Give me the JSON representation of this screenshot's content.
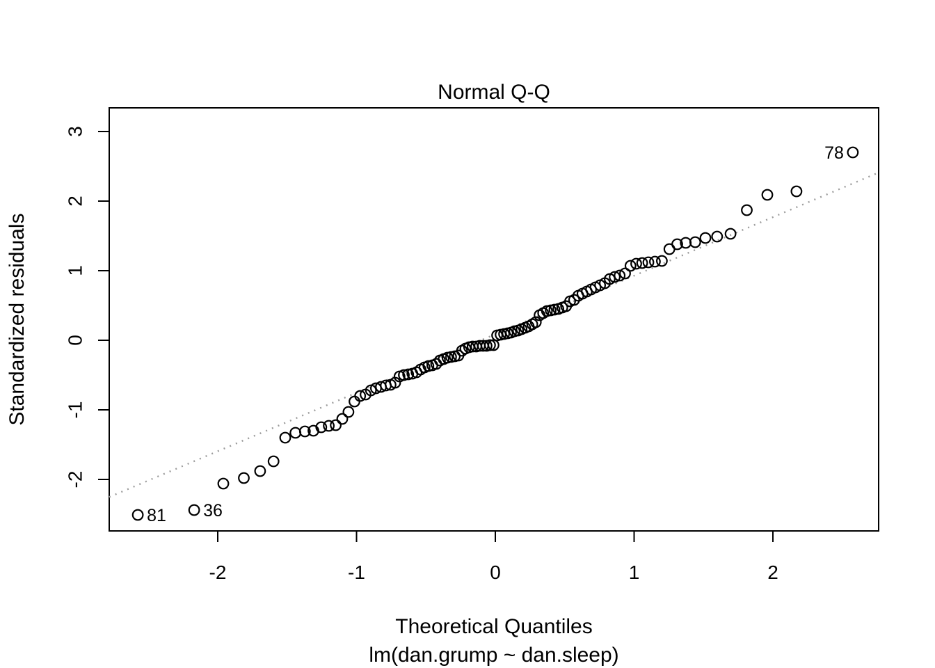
{
  "chart_data": {
    "type": "scatter",
    "title": "Normal Q-Q",
    "xlabel": "Theoretical Quantiles",
    "sublabel": "lm(dan.grump ~ dan.sleep)",
    "ylabel": "Standardized residuals",
    "background_color": "#ffffff",
    "point_color": "#000000",
    "point_shape": "open-circle",
    "reference_line": {
      "style": "dotted",
      "color": "#9b9b9b",
      "slope": 0.841,
      "intercept": 0.087
    },
    "grid": false,
    "legend": null,
    "x_ticks": [
      -2,
      -1,
      0,
      1,
      2
    ],
    "y_ticks": [
      3,
      2,
      1,
      0,
      -1,
      -2
    ],
    "xlim": [
      -2.782,
      2.762
    ],
    "ylim": [
      -2.74,
      3.34
    ],
    "n_points": 100,
    "series": [
      {
        "name": "standardized-residuals",
        "x": [
          -2.576,
          -2.17,
          -1.96,
          -1.812,
          -1.695,
          -1.598,
          -1.514,
          -1.44,
          -1.372,
          -1.311,
          -1.254,
          -1.2,
          -1.15,
          -1.103,
          -1.058,
          -1.015,
          -0.974,
          -0.935,
          -0.896,
          -0.86,
          -0.824,
          -0.789,
          -0.755,
          -0.722,
          -0.69,
          -0.659,
          -0.628,
          -0.598,
          -0.568,
          -0.539,
          -0.51,
          -0.482,
          -0.454,
          -0.426,
          -0.399,
          -0.372,
          -0.345,
          -0.319,
          -0.292,
          -0.266,
          -0.24,
          -0.215,
          -0.189,
          -0.164,
          -0.138,
          -0.113,
          -0.088,
          -0.063,
          -0.038,
          -0.013,
          0.013,
          0.038,
          0.063,
          0.088,
          0.113,
          0.138,
          0.164,
          0.189,
          0.215,
          0.24,
          0.266,
          0.292,
          0.319,
          0.345,
          0.372,
          0.399,
          0.426,
          0.454,
          0.482,
          0.51,
          0.539,
          0.568,
          0.598,
          0.628,
          0.659,
          0.69,
          0.722,
          0.755,
          0.789,
          0.824,
          0.86,
          0.896,
          0.935,
          0.974,
          1.015,
          1.058,
          1.103,
          1.15,
          1.2,
          1.254,
          1.311,
          1.372,
          1.44,
          1.514,
          1.598,
          1.695,
          1.812,
          1.96,
          2.17,
          2.576
        ],
        "y": [
          -2.51,
          -2.44,
          -2.06,
          -1.98,
          -1.88,
          -1.74,
          -1.4,
          -1.33,
          -1.31,
          -1.3,
          -1.25,
          -1.23,
          -1.22,
          -1.13,
          -1.03,
          -0.88,
          -0.8,
          -0.78,
          -0.72,
          -0.69,
          -0.67,
          -0.65,
          -0.64,
          -0.61,
          -0.52,
          -0.5,
          -0.49,
          -0.48,
          -0.46,
          -0.42,
          -0.39,
          -0.37,
          -0.36,
          -0.34,
          -0.29,
          -0.27,
          -0.25,
          -0.24,
          -0.23,
          -0.22,
          -0.15,
          -0.12,
          -0.1,
          -0.09,
          -0.09,
          -0.08,
          -0.08,
          -0.08,
          -0.07,
          -0.07,
          0.07,
          0.08,
          0.09,
          0.1,
          0.11,
          0.13,
          0.14,
          0.16,
          0.18,
          0.2,
          0.23,
          0.26,
          0.36,
          0.39,
          0.42,
          0.43,
          0.44,
          0.45,
          0.47,
          0.49,
          0.56,
          0.58,
          0.64,
          0.67,
          0.7,
          0.73,
          0.76,
          0.79,
          0.82,
          0.88,
          0.91,
          0.93,
          0.96,
          1.07,
          1.1,
          1.11,
          1.12,
          1.13,
          1.14,
          1.31,
          1.38,
          1.4,
          1.41,
          1.47,
          1.49,
          1.53,
          1.87,
          2.09,
          2.14,
          2.7
        ]
      }
    ],
    "labeled_points": [
      {
        "label": "81",
        "x": -2.576,
        "y": -2.51,
        "side": "right"
      },
      {
        "label": "36",
        "x": -2.17,
        "y": -2.44,
        "side": "right"
      },
      {
        "label": "78",
        "x": 2.576,
        "y": 2.7,
        "side": "left"
      }
    ]
  }
}
